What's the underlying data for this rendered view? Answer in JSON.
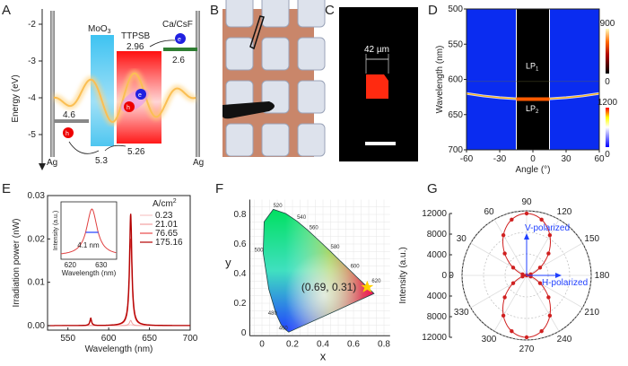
{
  "panels": {
    "A": "A",
    "B": "B",
    "C": "C",
    "D": "D",
    "E": "E",
    "F": "F",
    "G": "G"
  },
  "panelA": {
    "ylabel": "Energy (eV)",
    "yticks": [
      "-2",
      "-3",
      "-4",
      "-5"
    ],
    "layers": {
      "moo3": "MoO",
      "moo3_sub": "3",
      "ttpsb": "TTPSB",
      "cacsf": "Ca/CsF",
      "ag_left": "Ag",
      "ag_right": "Ag"
    },
    "levels": {
      "ag": "4.6",
      "ttpsb_lumo": "2.96",
      "cacsf": "2.6",
      "moo3": "5.3",
      "ttpsb_homo": "5.26"
    },
    "carriers": {
      "hole": "h",
      "electron": "e",
      "hole_sup": "+",
      "electron_sup": "-"
    },
    "colors": {
      "moo3": "#4fc6f0",
      "ttpsb": "#ff1a1a",
      "cacsf": "#2e7d32",
      "ag": "#9e9e9e",
      "wave": "#f5a623"
    }
  },
  "panelC": {
    "scale_label": "42 µm"
  },
  "chart_data": [
    {
      "panel": "D",
      "type": "heatmap",
      "xlabel": "Angle (°)",
      "ylabel": "Wavelength (nm)",
      "xlim": [
        -60,
        60
      ],
      "ylim": [
        700,
        500
      ],
      "xticks": [
        "-60",
        "-30",
        "0",
        "30",
        "60"
      ],
      "yticks": [
        "500",
        "550",
        "600",
        "650",
        "700"
      ],
      "annotations": {
        "lp1": "LP",
        "lp1_sub": "1",
        "lp2": "LP",
        "lp2_sub": "2"
      },
      "lp2_dispersion": {
        "angle": [
          -60,
          -45,
          -30,
          -15,
          0,
          15,
          30,
          45,
          60
        ],
        "wavelength": [
          620,
          623.5,
          626,
          627.5,
          628,
          627.5,
          626,
          623.5,
          620
        ]
      },
      "lp1_wavelength": 603,
      "colorbars": [
        {
          "max": "900",
          "min": "0"
        },
        {
          "max": "1200",
          "min": "0"
        }
      ]
    },
    {
      "panel": "E",
      "type": "line",
      "xlabel": "Wavelength (nm)",
      "ylabel": "Irradiation power (nW)",
      "xlim": [
        525,
        700
      ],
      "ylim": [
        0,
        0.03
      ],
      "xticks": [
        "550",
        "600",
        "650",
        "700"
      ],
      "yticks": [
        "0.00",
        "0.01",
        "0.02",
        "0.03"
      ],
      "legend_title": "A/cm",
      "legend_title_sup": "2",
      "series": [
        {
          "name": "0.23",
          "peak": 0.0002,
          "color": "#f6c6c6"
        },
        {
          "name": "21.01",
          "peak": 0.0012,
          "color": "#f2a0a0"
        },
        {
          "name": "76.65",
          "peak": 0.02,
          "color": "#e84a4a"
        },
        {
          "name": "175.16",
          "peak": 0.0258,
          "color": "#b30000"
        }
      ],
      "main_peak_nm": 627,
      "side_peak_nm": 578,
      "side_peak_value": 0.0017,
      "inset": {
        "xlabel": "Wavelength (nm)",
        "ylabel": "Intensity (a.u.)",
        "xticks": [
          "620",
          "630"
        ],
        "fwhm_label": "4.1 nm"
      }
    },
    {
      "panel": "F",
      "type": "scatter",
      "xlabel": "x",
      "ylabel": "y",
      "xlim": [
        -0.1,
        0.85
      ],
      "ylim": [
        -0.02,
        0.9
      ],
      "xticks": [
        "0",
        "0.2",
        "0.4",
        "0.6",
        "0.8"
      ],
      "yticks": [
        "0",
        "0.2",
        "0.4",
        "0.6",
        "0.8"
      ],
      "locus_labels": [
        "520",
        "540",
        "560",
        "580",
        "600",
        "620",
        "500",
        "480",
        "460"
      ],
      "point": {
        "x": 0.69,
        "y": 0.31,
        "label": "(0.69, 0.31)"
      }
    },
    {
      "panel": "G",
      "type": "polar",
      "ylabel": "Intensity (a.u.)",
      "rticks": [
        "12000",
        "8000",
        "4000",
        "0",
        "4000",
        "8000",
        "12000"
      ],
      "angle_labels": [
        "90",
        "120",
        "150",
        "180",
        "210",
        "240",
        "270",
        "300",
        "330",
        "0",
        "30",
        "60"
      ],
      "angles": [
        0,
        15,
        30,
        45,
        60,
        75,
        90,
        105,
        120,
        135,
        150,
        165,
        180,
        195,
        210,
        225,
        240,
        255,
        270,
        285,
        300,
        315,
        330,
        345
      ],
      "intensity": [
        0,
        770,
        2880,
        5750,
        8630,
        10730,
        11500,
        10730,
        8630,
        5750,
        2880,
        770,
        0,
        770,
        2880,
        5750,
        8630,
        10730,
        11500,
        10730,
        8630,
        5750,
        2880,
        770
      ],
      "arrows": {
        "v": "V-polarized",
        "h": "H-polarized"
      }
    }
  ]
}
